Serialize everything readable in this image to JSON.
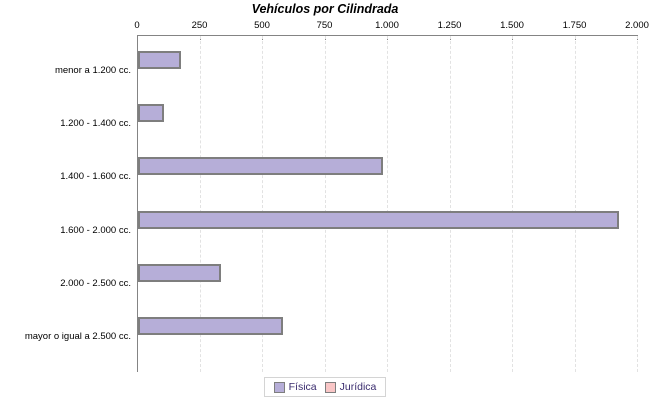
{
  "chart": {
    "title": "Vehículos por Cilindrada"
  },
  "chart_data": {
    "type": "bar",
    "orientation": "horizontal",
    "title": "Vehículos por Cilindrada",
    "categories": [
      "menor a 1.200 cc.",
      "1.200 - 1.400 cc.",
      "1.400 - 1.600 cc.",
      "1.600 - 2.000 cc.",
      "2.000 - 2.500 cc.",
      "mayor o igual a 2.500 cc."
    ],
    "series": [
      {
        "name": "Física",
        "color": "#b6aed8",
        "values": [
          170,
          105,
          980,
          1925,
          330,
          580
        ]
      },
      {
        "name": "Jurídica",
        "color": "#f9c6c6",
        "values": [
          0,
          0,
          0,
          0,
          0,
          0
        ]
      }
    ],
    "xlim": [
      0,
      2000
    ],
    "x_tick_labels": [
      "0",
      "250",
      "500",
      "750",
      "1.000",
      "1.250",
      "1.500",
      "1.750",
      "2.000"
    ],
    "grid": "vertical-dashed",
    "legend_position": "bottom",
    "bar_border_color": "#7e7e7e",
    "axis_color": "#848484",
    "gridline_color": "#e2e2e2",
    "legend_text_color": "#3a2c6e"
  }
}
